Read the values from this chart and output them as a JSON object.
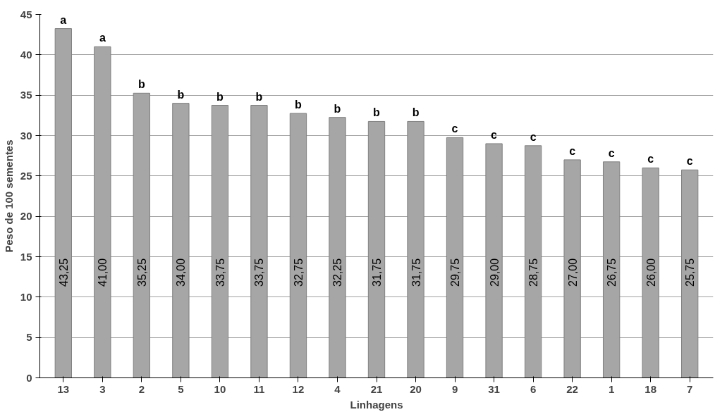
{
  "chart_data": {
    "type": "bar",
    "xlabel": "Linhagens",
    "ylabel": "Peso de 100 sementes",
    "categories": [
      "13",
      "3",
      "2",
      "5",
      "10",
      "11",
      "12",
      "4",
      "21",
      "20",
      "9",
      "31",
      "6",
      "22",
      "1",
      "18",
      "7"
    ],
    "values": [
      43.25,
      41.0,
      35.25,
      34.0,
      33.75,
      33.75,
      32.75,
      32.25,
      31.75,
      31.75,
      29.75,
      29.0,
      28.75,
      27.0,
      26.75,
      26.0,
      25.75
    ],
    "value_labels": [
      "43,25",
      "41,00",
      "35,25",
      "34,00",
      "33,75",
      "33,75",
      "32,75",
      "32,25",
      "31,75",
      "31,75",
      "29,75",
      "29,00",
      "28,75",
      "27,00",
      "26,75",
      "26,00",
      "25,75"
    ],
    "color": "#a6a6a6",
    "ylim": [
      0,
      45
    ],
    "yticks": [
      0,
      5,
      10,
      15,
      20,
      25,
      30,
      35,
      40,
      45
    ],
    "grid": "y",
    "annotations": [
      {
        "text": "a",
        "x": "13",
        "y": 43.25
      },
      {
        "text": "a",
        "x": "3",
        "y": 41.0
      },
      {
        "text": "b",
        "x": "2",
        "y": 35.25
      },
      {
        "text": "b",
        "x": "5",
        "y": 34.0
      },
      {
        "text": "b",
        "x": "10",
        "y": 33.75
      },
      {
        "text": "b",
        "x": "11",
        "y": 33.75
      },
      {
        "text": "b",
        "x": "12",
        "y": 32.75
      },
      {
        "text": "b",
        "x": "4",
        "y": 32.25
      },
      {
        "text": "b",
        "x": "21",
        "y": 31.75
      },
      {
        "text": "b",
        "x": "20",
        "y": 31.75
      },
      {
        "text": "c",
        "x": "9",
        "y": 29.75
      },
      {
        "text": "c",
        "x": "31",
        "y": 29.0
      },
      {
        "text": "c",
        "x": "6",
        "y": 28.75
      },
      {
        "text": "c",
        "x": "22",
        "y": 27.0
      },
      {
        "text": "c",
        "x": "1",
        "y": 26.75
      },
      {
        "text": "c",
        "x": "18",
        "y": 26.0
      },
      {
        "text": "c",
        "x": "7",
        "y": 25.75
      }
    ]
  }
}
